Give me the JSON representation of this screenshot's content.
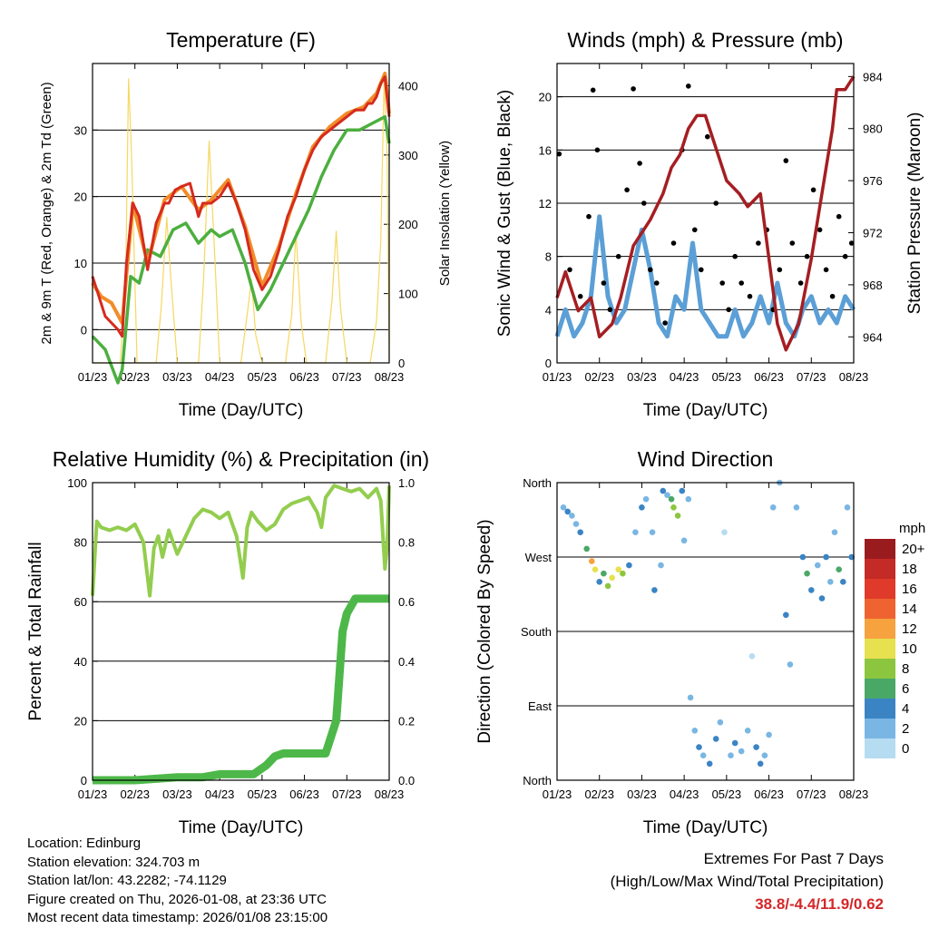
{
  "xticks": [
    "01/23",
    "02/23",
    "03/23",
    "04/23",
    "05/23",
    "06/23",
    "07/23",
    "08/23"
  ],
  "chart_data": [
    {
      "id": "temperature",
      "type": "line",
      "title": "Temperature (F)",
      "xlabel": "Time (Day/UTC)",
      "ylabel": "2m & 9m T (Red, Orange) & 2m Td (Green)",
      "ylabel_right": "Solar Insolation (Yellow)",
      "ylim": [
        -5,
        40
      ],
      "yticks": [
        0,
        10,
        20,
        30
      ],
      "ylim_right": [
        0,
        432
      ],
      "yticks_right": [
        0,
        100,
        200,
        300,
        400
      ],
      "colors": {
        "t2m": "#d52b1e",
        "t9m": "#f28c28",
        "td": "#4caf3f",
        "solar": "#f5d860"
      },
      "series": [
        {
          "name": "2m T",
          "x": [
            0,
            0.15,
            0.3,
            0.45,
            0.6,
            0.7,
            0.8,
            0.95,
            1.1,
            1.3,
            1.5,
            1.7,
            1.8,
            1.95,
            2.1,
            2.3,
            2.5,
            2.6,
            2.8,
            3.0,
            3.2,
            3.4,
            3.6,
            3.8,
            4.0,
            4.2,
            4.4,
            4.6,
            4.8,
            5.0,
            5.2,
            5.4,
            5.6,
            5.8,
            6.0,
            6.2,
            6.4,
            6.5,
            6.6,
            6.7,
            6.8,
            6.9,
            7.0
          ],
          "y": [
            8,
            5,
            2,
            1,
            0,
            -1,
            10,
            19,
            17,
            9,
            16,
            19,
            19,
            21,
            21.5,
            22,
            17,
            19,
            19,
            20,
            22,
            19,
            15,
            9,
            6,
            8,
            12,
            17,
            20,
            24,
            27,
            29,
            30,
            31,
            32,
            33,
            33,
            34,
            34,
            35,
            37,
            38,
            32
          ]
        },
        {
          "name": "9m T",
          "x": [
            0,
            0.2,
            0.45,
            0.7,
            0.95,
            1.3,
            1.7,
            2.1,
            2.5,
            2.8,
            3.2,
            3.6,
            4.0,
            4.4,
            4.8,
            5.2,
            5.6,
            6.0,
            6.4,
            6.7,
            6.9,
            7.0
          ],
          "y": [
            7,
            5,
            4,
            1,
            19,
            10,
            19.5,
            21.5,
            18,
            19.5,
            22.5,
            15.5,
            6.5,
            12.5,
            20.5,
            27.5,
            30.5,
            32.5,
            33.5,
            35.5,
            38.5,
            32.5
          ]
        },
        {
          "name": "2m Td",
          "x": [
            0,
            0.3,
            0.6,
            0.7,
            0.9,
            1.1,
            1.3,
            1.6,
            1.9,
            2.2,
            2.5,
            2.8,
            3.0,
            3.3,
            3.6,
            3.9,
            4.2,
            4.5,
            4.8,
            5.1,
            5.4,
            5.7,
            6.0,
            6.3,
            6.6,
            6.9,
            7.0
          ],
          "y": [
            -1,
            -3,
            -8,
            -6,
            8,
            7,
            12,
            11,
            15,
            16,
            13,
            15,
            14,
            15,
            10,
            3,
            6,
            10,
            14,
            18,
            23,
            27,
            30,
            30,
            31,
            32,
            28
          ]
        },
        {
          "name": "Solar Insolation",
          "axis": "right",
          "x": [
            0,
            0.65,
            0.78,
            0.85,
            0.92,
            1.05,
            1.5,
            1.62,
            1.75,
            1.85,
            2.0,
            2.5,
            2.62,
            2.75,
            2.88,
            3.0,
            3.5,
            3.65,
            3.75,
            3.85,
            4.0,
            4.55,
            4.7,
            4.8,
            4.92,
            5.05,
            5.5,
            5.65,
            5.75,
            5.85,
            6.0,
            6.55,
            6.7,
            6.8,
            6.88,
            6.95,
            7.0
          ],
          "y": [
            0,
            0,
            110,
            410,
            300,
            0,
            0,
            80,
            210,
            120,
            0,
            0,
            120,
            320,
            160,
            0,
            0,
            70,
            120,
            40,
            0,
            0,
            70,
            190,
            60,
            0,
            0,
            90,
            190,
            80,
            0,
            0,
            60,
            175,
            410,
            300,
            0
          ]
        }
      ]
    },
    {
      "id": "winds",
      "type": "scatter+line",
      "title": "Winds (mph) & Pressure (mb)",
      "xlabel": "Time (Day/UTC)",
      "ylabel": "Sonic Wind & Gust (Blue, Black)",
      "ylabel_right": "Station Pressure (Maroon)",
      "ylim": [
        0,
        22.5
      ],
      "yticks": [
        0,
        4,
        8,
        12,
        16,
        20
      ],
      "ylim_right": [
        962,
        985
      ],
      "yticks_right": [
        964,
        968,
        972,
        976,
        980,
        984
      ],
      "colors": {
        "wind": "#5b9fd6",
        "gust": "#000000",
        "pressure": "#a51e22"
      },
      "series": [
        {
          "name": "Sonic Wind",
          "x": [
            0,
            0.2,
            0.4,
            0.6,
            0.8,
            1.0,
            1.2,
            1.4,
            1.6,
            1.8,
            2.0,
            2.2,
            2.4,
            2.6,
            2.8,
            3.0,
            3.2,
            3.4,
            3.6,
            3.8,
            4.0,
            4.2,
            4.4,
            4.6,
            4.8,
            5.0,
            5.2,
            5.4,
            5.6,
            5.8,
            6.0,
            6.2,
            6.4,
            6.6,
            6.8,
            7.0
          ],
          "y": [
            2,
            4,
            2,
            3,
            5,
            11,
            5,
            3,
            4,
            7,
            10,
            7,
            3,
            2,
            5,
            4,
            9,
            4,
            3,
            2,
            2,
            4,
            2,
            3,
            5,
            3,
            6,
            3,
            2,
            4,
            5,
            3,
            4,
            3,
            5,
            4
          ]
        },
        {
          "name": "Gust",
          "x": [
            0.05,
            0.3,
            0.55,
            0.75,
            0.85,
            0.95,
            1.1,
            1.25,
            1.45,
            1.65,
            1.8,
            1.95,
            2.05,
            2.2,
            2.35,
            2.55,
            2.75,
            2.95,
            3.1,
            3.25,
            3.4,
            3.55,
            3.75,
            3.9,
            4.05,
            4.2,
            4.35,
            4.55,
            4.75,
            4.95,
            5.1,
            5.25,
            5.4,
            5.55,
            5.75,
            5.9,
            6.05,
            6.2,
            6.35,
            6.5,
            6.65,
            6.8,
            6.95
          ],
          "y": [
            15.7,
            7,
            5,
            11,
            20.5,
            16,
            6,
            4,
            8,
            13,
            20.6,
            15,
            12,
            7,
            6,
            3,
            9,
            16,
            20.8,
            10,
            7,
            17,
            12,
            6,
            4,
            8,
            6,
            5,
            9,
            10,
            4,
            7,
            15.2,
            9,
            6,
            8,
            13,
            10,
            7,
            5,
            11,
            8,
            9
          ]
        },
        {
          "name": "Station Pressure",
          "axis": "right",
          "x": [
            0,
            0.2,
            0.5,
            0.8,
            1.0,
            1.3,
            1.5,
            1.8,
            2.2,
            2.5,
            2.7,
            2.9,
            3.1,
            3.3,
            3.5,
            3.7,
            4.0,
            4.3,
            4.5,
            4.8,
            5.0,
            5.2,
            5.4,
            5.7,
            6.0,
            6.3,
            6.5,
            6.6,
            6.8,
            7.0
          ],
          "y": [
            967,
            969,
            966,
            967,
            964,
            965,
            967,
            971,
            973,
            975,
            977,
            978,
            980,
            981,
            981,
            979,
            976,
            975,
            974,
            975,
            970,
            965,
            963,
            965,
            970,
            976,
            980,
            983,
            983,
            984
          ]
        }
      ]
    },
    {
      "id": "humidity",
      "type": "line",
      "title": "Relative Humidity (%) & Precipitation (in)",
      "xlabel": "Time (Day/UTC)",
      "ylabel": "Percent & Total Rainfall",
      "ylim": [
        0,
        100
      ],
      "yticks": [
        0,
        20,
        40,
        60,
        80,
        100
      ],
      "ylim_right": [
        0,
        1.0
      ],
      "yticks_right": [
        0.0,
        0.2,
        0.4,
        0.6,
        0.8,
        1.0
      ],
      "colors": {
        "rh": "#93cd4e",
        "precip": "#4db849"
      },
      "series": [
        {
          "name": "Relative Humidity",
          "x": [
            0,
            0.1,
            0.2,
            0.4,
            0.6,
            0.8,
            1.0,
            1.2,
            1.35,
            1.45,
            1.55,
            1.65,
            1.8,
            2.0,
            2.2,
            2.4,
            2.6,
            2.8,
            3.0,
            3.2,
            3.4,
            3.55,
            3.65,
            3.75,
            3.9,
            4.1,
            4.3,
            4.5,
            4.7,
            4.9,
            5.1,
            5.3,
            5.4,
            5.5,
            5.7,
            5.9,
            6.1,
            6.3,
            6.5,
            6.7,
            6.8,
            6.9,
            6.95,
            7.0
          ],
          "y": [
            62,
            87,
            85,
            84,
            85,
            84,
            86,
            80,
            62,
            78,
            82,
            75,
            84,
            76,
            82,
            88,
            91,
            90,
            88,
            90,
            82,
            68,
            85,
            90,
            87,
            84,
            86,
            91,
            93,
            94,
            95,
            90,
            85,
            95,
            99,
            98,
            97,
            98,
            95,
            98,
            94,
            71,
            78,
            99
          ]
        },
        {
          "name": "Total Precipitation",
          "axis": "right",
          "x": [
            0,
            1.0,
            2.0,
            2.6,
            3.0,
            3.8,
            4.1,
            4.3,
            4.5,
            5.0,
            5.5,
            5.75,
            5.9,
            6.0,
            6.2,
            6.5,
            6.8,
            7.0
          ],
          "y": [
            0.0,
            0.0,
            0.01,
            0.01,
            0.02,
            0.02,
            0.05,
            0.08,
            0.09,
            0.09,
            0.09,
            0.2,
            0.5,
            0.56,
            0.61,
            0.61,
            0.61,
            0.61
          ]
        }
      ]
    },
    {
      "id": "direction",
      "type": "scatter",
      "title": "Wind Direction",
      "xlabel": "Time (Day/UTC)",
      "ylabel": "Direction (Colored By Speed)",
      "ylim": [
        0,
        360
      ],
      "ytick_labels": [
        "North",
        "East",
        "South",
        "West",
        "North"
      ],
      "ytick_values": [
        0,
        90,
        180,
        270,
        360
      ],
      "colorbar": {
        "title": "mph",
        "labels": [
          "20+",
          "18",
          "16",
          "14",
          "12",
          "10",
          "8",
          "6",
          "4",
          "2",
          "0"
        ],
        "colors": [
          "#9a1b1e",
          "#c42a26",
          "#df3a2a",
          "#ee6330",
          "#f6a23f",
          "#e7e04f",
          "#8cc63f",
          "#4aa866",
          "#3a84c4",
          "#79b6e3",
          "#b6dcf2"
        ]
      },
      "series": [
        {
          "name": "Direction",
          "points": [
            [
              0.15,
              330,
              3
            ],
            [
              0.25,
              325,
              4
            ],
            [
              0.35,
              320,
              3
            ],
            [
              0.45,
              310,
              2
            ],
            [
              0.55,
              300,
              5
            ],
            [
              0.7,
              280,
              6
            ],
            [
              0.82,
              265,
              12
            ],
            [
              0.9,
              255,
              10
            ],
            [
              1.0,
              240,
              4
            ],
            [
              1.1,
              250,
              7
            ],
            [
              1.2,
              235,
              8
            ],
            [
              1.3,
              245,
              10
            ],
            [
              1.45,
              255,
              11
            ],
            [
              1.55,
              250,
              9
            ],
            [
              1.7,
              260,
              5
            ],
            [
              1.85,
              300,
              3
            ],
            [
              2.0,
              330,
              4
            ],
            [
              2.1,
              340,
              3
            ],
            [
              2.25,
              300,
              2
            ],
            [
              2.3,
              230,
              4
            ],
            [
              2.45,
              260,
              3
            ],
            [
              2.5,
              350,
              4
            ],
            [
              2.6,
              345,
              2
            ],
            [
              2.7,
              340,
              6
            ],
            [
              2.75,
              330,
              9
            ],
            [
              2.85,
              320,
              8
            ],
            [
              2.95,
              350,
              4
            ],
            [
              3.0,
              290,
              3
            ],
            [
              3.1,
              340,
              2
            ],
            [
              3.15,
              100,
              2
            ],
            [
              3.25,
              60,
              3
            ],
            [
              3.35,
              40,
              4
            ],
            [
              3.45,
              30,
              3
            ],
            [
              3.6,
              20,
              5
            ],
            [
              3.75,
              50,
              4
            ],
            [
              3.85,
              70,
              2
            ],
            [
              3.95,
              300,
              1
            ],
            [
              4.1,
              30,
              3
            ],
            [
              4.2,
              45,
              4
            ],
            [
              4.35,
              35,
              3
            ],
            [
              4.5,
              60,
              2
            ],
            [
              4.6,
              150,
              1
            ],
            [
              4.7,
              40,
              4
            ],
            [
              4.8,
              20,
              5
            ],
            [
              4.9,
              30,
              3
            ],
            [
              5.0,
              55,
              2
            ],
            [
              5.1,
              330,
              2
            ],
            [
              5.25,
              360,
              3
            ],
            [
              5.4,
              200,
              4
            ],
            [
              5.5,
              140,
              2
            ],
            [
              5.65,
              330,
              3
            ],
            [
              5.8,
              270,
              4
            ],
            [
              5.9,
              250,
              6
            ],
            [
              6.0,
              230,
              5
            ],
            [
              6.15,
              260,
              3
            ],
            [
              6.25,
              220,
              4
            ],
            [
              6.35,
              270,
              5
            ],
            [
              6.45,
              240,
              3
            ],
            [
              6.55,
              300,
              2
            ],
            [
              6.65,
              255,
              6
            ],
            [
              6.75,
              240,
              4
            ],
            [
              6.85,
              330,
              3
            ],
            [
              6.95,
              270,
              4
            ]
          ]
        }
      ]
    }
  ],
  "info": {
    "location": "Location: Edinburg",
    "elevation": "Station elevation: 324.703 m",
    "latlon": "Station lat/lon: 43.2282; -74.1129",
    "created": "Figure created on Thu, 2026-01-08, at 23:36 UTC",
    "recent": "Most recent data timestamp: 2026/01/08 23:15:00"
  },
  "extremes": {
    "title": "Extremes For Past 7 Days",
    "subtitle": "(High/Low/Max Wind/Total Precipitation)",
    "values": "38.8/-4.4/11.9/0.62"
  }
}
